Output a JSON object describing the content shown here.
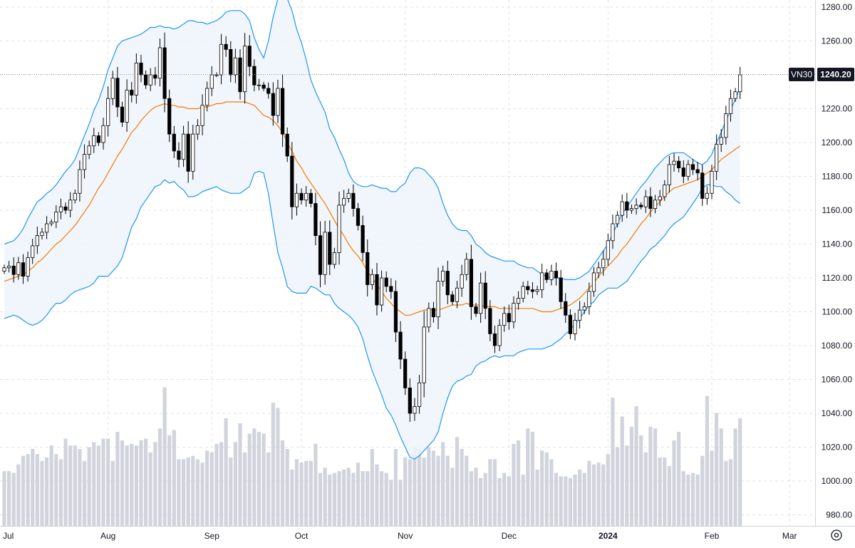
{
  "chart_data": {
    "type": "candlestick",
    "symbol": "VN30",
    "last_price": "1240.20",
    "ylim": [
      975,
      1285
    ],
    "y_ticks": [
      "1280.00",
      "1260.00",
      "1240.00",
      "1220.00",
      "1200.00",
      "1180.00",
      "1160.00",
      "1140.00",
      "1120.00",
      "1100.00",
      "1080.00",
      "1060.00",
      "1040.00",
      "1020.00",
      "1000.00",
      "980.00"
    ],
    "x_labels": [
      {
        "label": "Jul",
        "bold": false,
        "index": -0.3
      },
      {
        "label": "Aug",
        "bold": false,
        "index": 22
      },
      {
        "label": "Sep",
        "bold": false,
        "index": 44
      },
      {
        "label": "Oct",
        "bold": false,
        "index": 63
      },
      {
        "label": "Nov",
        "bold": false,
        "index": 85
      },
      {
        "label": "Dec",
        "bold": false,
        "index": 107
      },
      {
        "label": "2024",
        "bold": true,
        "index": 128
      },
      {
        "label": "Feb",
        "bold": false,
        "index": 150
      },
      {
        "label": "Mar",
        "bold": false,
        "index": 166.5
      }
    ],
    "colors": {
      "up_body": "#ffffff",
      "down_body": "#000000",
      "candle_edge": "#000000",
      "bands": "#2196f3",
      "band_fill": "#eef5fc",
      "mid": "#f57c00",
      "volume": "#d1d4dc",
      "grid": "#e0e3eb",
      "last_line": "#9598a1",
      "badge_bg": "#131722",
      "badge_text": "#ffffff"
    },
    "closes": [
      1126,
      1127,
      1122,
      1129,
      1121,
      1132,
      1139,
      1145,
      1147,
      1152,
      1153,
      1159,
      1162,
      1160,
      1166,
      1170,
      1184,
      1193,
      1198,
      1204,
      1200,
      1210,
      1226,
      1238,
      1221,
      1212,
      1231,
      1228,
      1247,
      1240,
      1234,
      1240,
      1238,
      1256,
      1226,
      1205,
      1195,
      1190,
      1205,
      1183,
      1205,
      1210,
      1222,
      1232,
      1240,
      1240,
      1258,
      1255,
      1240,
      1250,
      1230,
      1257,
      1245,
      1234,
      1234,
      1232,
      1229,
      1216,
      1232,
      1205,
      1192,
      1162,
      1170,
      1166,
      1170,
      1164,
      1145,
      1122,
      1147,
      1128,
      1135,
      1163,
      1167,
      1170,
      1161,
      1151,
      1135,
      1116,
      1122,
      1104,
      1120,
      1115,
      1112,
      1088,
      1072,
      1055,
      1040,
      1044,
      1058,
      1091,
      1102,
      1097,
      1118,
      1124,
      1110,
      1106,
      1114,
      1122,
      1131,
      1103,
      1099,
      1117,
      1102,
      1087,
      1080,
      1092,
      1099,
      1094,
      1105,
      1108,
      1115,
      1113,
      1112,
      1113,
      1123,
      1119,
      1124,
      1120,
      1106,
      1098,
      1087,
      1095,
      1101,
      1103,
      1112,
      1123,
      1126,
      1131,
      1142,
      1152,
      1157,
      1165,
      1160,
      1161,
      1163,
      1162,
      1168,
      1161,
      1166,
      1168,
      1175,
      1187,
      1189,
      1185,
      1180,
      1187,
      1184,
      1182,
      1167,
      1170,
      1183,
      1199,
      1203,
      1217,
      1226,
      1230,
      1240
    ],
    "volumes": [
      1007,
      1007,
      1006,
      1011,
      1016,
      1017,
      1020,
      1017,
      1013,
      1015,
      1022,
      1017,
      1014,
      1026,
      1022,
      1022,
      1020,
      1013,
      1021,
      1024,
      1022,
      1026,
      1026,
      1013,
      1030,
      1025,
      1022,
      1023,
      1022,
      1025,
      1026,
      1018,
      1024,
      1032,
      1056,
      1028,
      1031,
      1014,
      1014,
      1015,
      1016,
      1014,
      1012,
      1019,
      1018,
      1023,
      1024,
      1038,
      1015,
      1024,
      1035,
      1018,
      1029,
      1032,
      1030,
      1029,
      1018,
      1047,
      1044,
      1025,
      1020,
      1008,
      1014,
      1012,
      1013,
      1013,
      1023,
      1006,
      1009,
      1005,
      1006,
      1007,
      1008,
      1009,
      1006,
      1012,
      1007,
      1007,
      1020,
      1011,
      1007,
      1006,
      1002,
      1020,
      1002,
      1015,
      1014,
      1021,
      1020,
      1015,
      1021,
      1019,
      1016,
      1024,
      1016,
      1009,
      1027,
      1020,
      1016,
      1007,
      1009,
      1003,
      1006,
      1014,
      1014,
      1003,
      1006,
      1004,
      1023,
      1025,
      1005,
      1032,
      1030,
      1008,
      1019,
      1018,
      1014,
      1006,
      1004,
      1004,
      1003,
      1005,
      1008,
      1006,
      1013,
      1011,
      1012,
      1011,
      1017,
      1050,
      1021,
      1039,
      1022,
      1033,
      1045,
      1028,
      1018,
      1033,
      1032,
      1015,
      1015,
      1010,
      1025,
      1030,
      1007,
      1005,
      1006,
      1005,
      1016,
      1051,
      1019,
      1041,
      1032,
      1013,
      1014,
      1032,
      1038
    ],
    "upper_band": [
      1140,
      1141,
      1142,
      1145,
      1149,
      1155,
      1160,
      1165,
      1167,
      1170,
      1172,
      1175,
      1179,
      1183,
      1186,
      1190,
      1197,
      1204,
      1211,
      1219,
      1225,
      1233,
      1243,
      1250,
      1257,
      1260,
      1261,
      1262,
      1263,
      1264,
      1266,
      1268,
      1268,
      1269,
      1268,
      1268,
      1267,
      1268,
      1270,
      1272,
      1272,
      1271,
      1271,
      1270,
      1271,
      1272,
      1274,
      1277,
      1278,
      1278,
      1278,
      1276,
      1272,
      1262,
      1255,
      1250,
      1260,
      1274,
      1285,
      1286,
      1285,
      1278,
      1267,
      1259,
      1249,
      1237,
      1230,
      1224,
      1218,
      1208,
      1203,
      1196,
      1190,
      1182,
      1177,
      1175,
      1174,
      1174,
      1175,
      1174,
      1173,
      1173,
      1171,
      1171,
      1174,
      1176,
      1182,
      1185,
      1185,
      1184,
      1181,
      1178,
      1173,
      1164,
      1157,
      1152,
      1149,
      1148,
      1148,
      1145,
      1140,
      1138,
      1135,
      1133,
      1132,
      1131,
      1130,
      1130,
      1130,
      1128,
      1127,
      1126,
      1126,
      1124,
      1122,
      1121,
      1120,
      1120,
      1120,
      1119,
      1119,
      1119,
      1120,
      1122,
      1124,
      1128,
      1132,
      1136,
      1140,
      1146,
      1152,
      1158,
      1162,
      1166,
      1170,
      1174,
      1177,
      1181,
      1185,
      1188,
      1191,
      1193,
      1194,
      1194,
      1194,
      1192,
      1190,
      1188,
      1187,
      1189,
      1193,
      1200,
      1206,
      1213,
      1219,
      1226,
      1232
    ],
    "mid_band": [
      1118,
      1119,
      1120,
      1121,
      1122,
      1124,
      1126,
      1129,
      1131,
      1134,
      1137,
      1140,
      1142,
      1145,
      1148,
      1151,
      1155,
      1159,
      1163,
      1168,
      1173,
      1177,
      1182,
      1187,
      1192,
      1196,
      1201,
      1206,
      1209,
      1213,
      1216,
      1219,
      1221,
      1222,
      1223,
      1222,
      1222,
      1221,
      1221,
      1220,
      1220,
      1220,
      1221,
      1221,
      1222,
      1223,
      1223,
      1224,
      1224,
      1224,
      1224,
      1224,
      1223,
      1222,
      1219,
      1216,
      1215,
      1213,
      1210,
      1206,
      1200,
      1195,
      1189,
      1185,
      1180,
      1176,
      1172,
      1168,
      1164,
      1159,
      1154,
      1149,
      1145,
      1140,
      1136,
      1133,
      1129,
      1124,
      1120,
      1116,
      1112,
      1108,
      1105,
      1102,
      1100,
      1098,
      1098,
      1099,
      1100,
      1101,
      1101,
      1101,
      1101,
      1102,
      1103,
      1104,
      1104,
      1104,
      1105,
      1104,
      1104,
      1104,
      1103,
      1103,
      1103,
      1102,
      1102,
      1102,
      1102,
      1102,
      1102,
      1102,
      1102,
      1101,
      1100,
      1100,
      1100,
      1101,
      1102,
      1103,
      1104,
      1106,
      1108,
      1111,
      1114,
      1117,
      1121,
      1124,
      1127,
      1130,
      1133,
      1137,
      1140,
      1144,
      1148,
      1152,
      1155,
      1159,
      1162,
      1165,
      1168,
      1171,
      1173,
      1174,
      1175,
      1176,
      1177,
      1178,
      1180,
      1182,
      1184,
      1187,
      1190,
      1192,
      1194,
      1196,
      1198
    ],
    "lower_band": [
      1096,
      1097,
      1098,
      1097,
      1095,
      1093,
      1092,
      1093,
      1095,
      1098,
      1102,
      1105,
      1105,
      1107,
      1110,
      1112,
      1113,
      1114,
      1115,
      1117,
      1121,
      1121,
      1121,
      1124,
      1127,
      1132,
      1141,
      1150,
      1155,
      1162,
      1166,
      1170,
      1174,
      1175,
      1178,
      1176,
      1177,
      1174,
      1172,
      1168,
      1168,
      1169,
      1171,
      1172,
      1173,
      1174,
      1172,
      1171,
      1170,
      1170,
      1170,
      1172,
      1174,
      1182,
      1183,
      1182,
      1170,
      1152,
      1135,
      1126,
      1115,
      1112,
      1111,
      1111,
      1111,
      1115,
      1114,
      1112,
      1110,
      1110,
      1105,
      1102,
      1100,
      1098,
      1095,
      1091,
      1084,
      1074,
      1065,
      1058,
      1051,
      1043,
      1039,
      1033,
      1026,
      1020,
      1014,
      1013,
      1015,
      1018,
      1021,
      1024,
      1029,
      1040,
      1049,
      1056,
      1059,
      1060,
      1062,
      1063,
      1068,
      1070,
      1071,
      1073,
      1074,
      1073,
      1074,
      1074,
      1074,
      1076,
      1077,
      1078,
      1078,
      1078,
      1078,
      1079,
      1080,
      1082,
      1084,
      1087,
      1089,
      1093,
      1096,
      1100,
      1104,
      1106,
      1110,
      1112,
      1114,
      1114,
      1114,
      1116,
      1118,
      1122,
      1126,
      1130,
      1133,
      1137,
      1139,
      1142,
      1145,
      1149,
      1152,
      1154,
      1156,
      1160,
      1164,
      1168,
      1173,
      1175,
      1175,
      1174,
      1174,
      1171,
      1169,
      1166,
      1164
    ]
  }
}
